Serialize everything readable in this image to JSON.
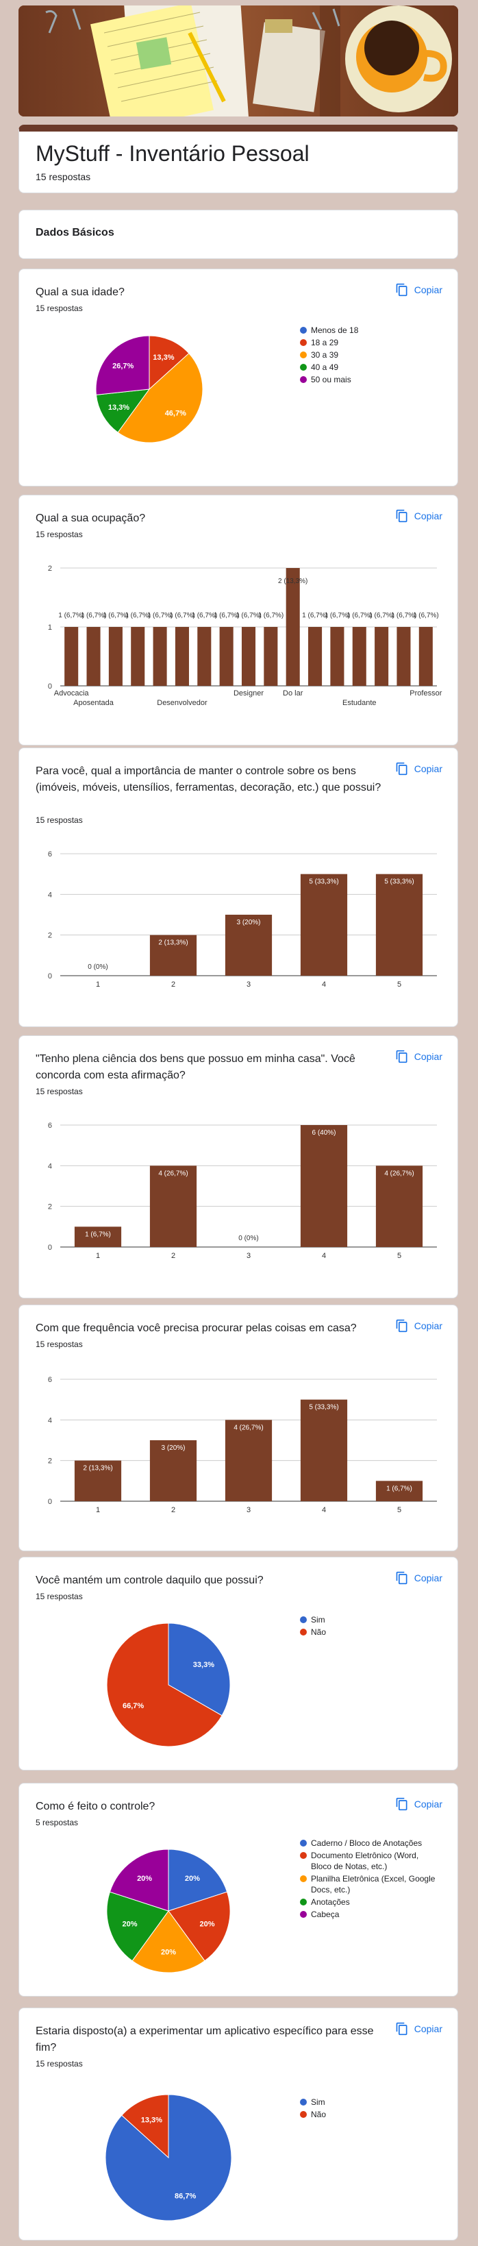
{
  "form": {
    "title": "MyStuff - Inventário Pessoal",
    "responses": "15 respostas",
    "section": "Dados Básicos"
  },
  "copy_label": "Copiar",
  "colors": {
    "bar": "#7b3f27",
    "pie": [
      "#3366cc",
      "#dc3912",
      "#ff9900",
      "#109618",
      "#990099"
    ]
  },
  "questions": [
    {
      "title": "Qual a sua idade?",
      "count": "15 respostas",
      "chart_data": {
        "type": "pie",
        "categories": [
          "Menos de 18",
          "18 a 29",
          "30 a 39",
          "40 a 49",
          "50 ou mais"
        ],
        "values": [
          0,
          13.3,
          46.7,
          13.3,
          26.7
        ],
        "labels": [
          "",
          "13,3%",
          "46,7%",
          "13,3%",
          "26,7%"
        ],
        "colors": [
          "#3366cc",
          "#dc3912",
          "#ff9900",
          "#109618",
          "#990099"
        ],
        "legend": "right"
      }
    },
    {
      "title": "Qual a sua ocupação?",
      "count": "15 respostas",
      "chart_data": {
        "type": "bar",
        "categories": [
          "Advocacia",
          "Aposentada",
          "",
          "",
          "",
          "Desenvolvedor",
          "",
          "",
          "Designer",
          "",
          "Do lar",
          "",
          "",
          "Estudante",
          "",
          "",
          "Professor"
        ],
        "values": [
          1,
          1,
          1,
          1,
          1,
          1,
          1,
          1,
          1,
          1,
          2,
          1,
          1,
          1,
          1,
          1,
          1
        ],
        "labels": [
          "1 (6,7%)",
          "1 (6,7%)",
          "1 (6,7%)",
          "1 (6,7%)",
          "1 (6,7%)",
          "1 (6,7%)",
          "1 (6,7%)",
          "1 (6,7%)",
          "1 (6,7%)",
          "1 (6,7%)",
          "2 (13,3%)",
          "1 (6,7%)",
          "1 (6,7%)",
          "1 (6,7%)",
          "1 (6,7%)",
          "1 (6,7%)",
          "1 (6,7%)"
        ],
        "ylim": [
          0,
          2
        ],
        "yticks": [
          0,
          1,
          2
        ]
      }
    },
    {
      "title": "Para você, qual a importância de manter o controle sobre os bens (imóveis, móveis, utensílios, ferramentas, decoração, etc.) que possui?",
      "count": "15 respostas",
      "chart_data": {
        "type": "bar",
        "categories": [
          "1",
          "2",
          "3",
          "4",
          "5"
        ],
        "values": [
          0,
          2,
          3,
          5,
          5
        ],
        "labels": [
          "0 (0%)",
          "2 (13,3%)",
          "3 (20%)",
          "5 (33,3%)",
          "5 (33,3%)"
        ],
        "ylim": [
          0,
          6
        ],
        "yticks": [
          0,
          2,
          4,
          6
        ]
      }
    },
    {
      "title": "\"Tenho plena ciência dos bens que possuo em minha casa\". Você concorda com esta afirmação?",
      "count": "15 respostas",
      "chart_data": {
        "type": "bar",
        "categories": [
          "1",
          "2",
          "3",
          "4",
          "5"
        ],
        "values": [
          1,
          4,
          0,
          6,
          4
        ],
        "labels": [
          "1 (6,7%)",
          "4 (26,7%)",
          "0 (0%)",
          "6 (40%)",
          "4 (26,7%)"
        ],
        "ylim": [
          0,
          6
        ],
        "yticks": [
          0,
          2,
          4,
          6
        ]
      }
    },
    {
      "title": "Com que frequência você precisa procurar pelas coisas em casa?",
      "count": "15 respostas",
      "chart_data": {
        "type": "bar",
        "categories": [
          "1",
          "2",
          "3",
          "4",
          "5"
        ],
        "values": [
          2,
          3,
          4,
          5,
          1
        ],
        "labels": [
          "2 (13,3%)",
          "3 (20%)",
          "4 (26,7%)",
          "5 (33,3%)",
          "1 (6,7%)"
        ],
        "ylim": [
          0,
          6
        ],
        "yticks": [
          0,
          2,
          4,
          6
        ]
      }
    },
    {
      "title": "Você mantém um controle daquilo que possui?",
      "count": "15 respostas",
      "chart_data": {
        "type": "pie",
        "categories": [
          "Sim",
          "Não"
        ],
        "values": [
          33.3,
          66.7
        ],
        "labels": [
          "33,3%",
          "66,7%"
        ],
        "colors": [
          "#3366cc",
          "#dc3912"
        ],
        "legend": "right"
      }
    },
    {
      "title": "Como é feito o controle?",
      "count": "5 respostas",
      "chart_data": {
        "type": "pie",
        "categories": [
          "Caderno / Bloco de Anotações",
          "Documento Eletrônico (Word, Bloco de Notas, etc.)",
          "Planilha Eletrônica (Excel, Google Docs, etc.)",
          "Anotações",
          "Cabeça"
        ],
        "values": [
          20,
          20,
          20,
          20,
          20
        ],
        "labels": [
          "20%",
          "20%",
          "20%",
          "20%",
          "20%"
        ],
        "colors": [
          "#3366cc",
          "#dc3912",
          "#ff9900",
          "#109618",
          "#990099"
        ],
        "legend": "right"
      }
    },
    {
      "title": "Estaria disposto(a) a experimentar um aplicativo específico para esse fim?",
      "count": "15 respostas",
      "chart_data": {
        "type": "pie",
        "categories": [
          "Sim",
          "Não"
        ],
        "values": [
          86.7,
          13.3
        ],
        "labels": [
          "86,7%",
          "13,3%"
        ],
        "colors": [
          "#3366cc",
          "#dc3912"
        ],
        "legend": "right"
      }
    }
  ]
}
